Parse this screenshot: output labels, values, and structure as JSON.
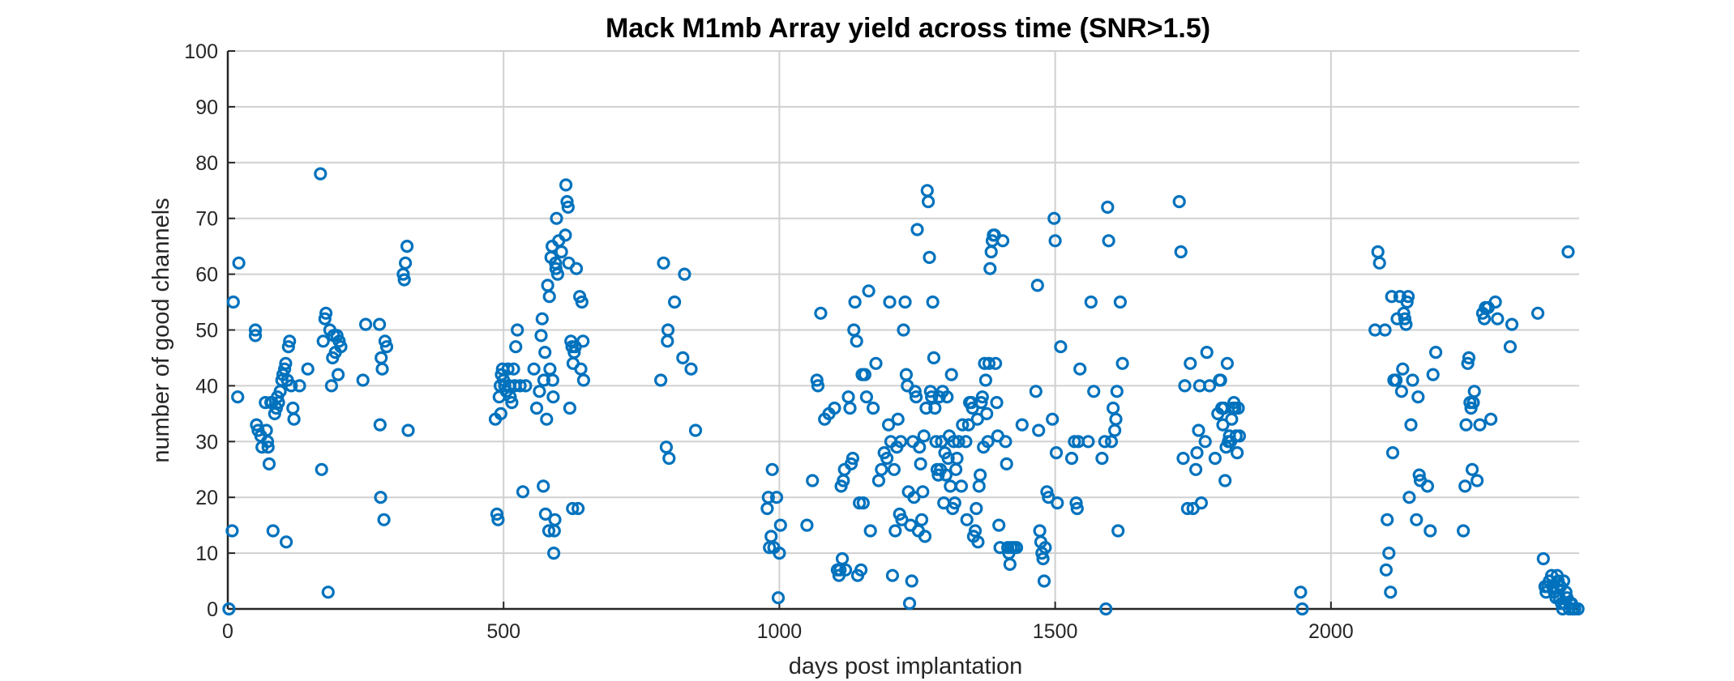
{
  "chart_data": {
    "type": "scatter",
    "title": "Mack M1mb Array yield across time (SNR>1.5)",
    "xlabel": "days post implantation",
    "ylabel": "number of good channels",
    "xlim": [
      0,
      2450
    ],
    "ylim": [
      0,
      100
    ],
    "xticks": [
      0,
      500,
      1000,
      1500,
      2000
    ],
    "yticks": [
      0,
      10,
      20,
      30,
      40,
      50,
      60,
      70,
      80,
      90,
      100
    ],
    "grid": true,
    "marker": "circle",
    "marker_color": "#0072BD",
    "points": [
      [
        2,
        0
      ],
      [
        8,
        14
      ],
      [
        10,
        55
      ],
      [
        18,
        38
      ],
      [
        20,
        62
      ],
      [
        50,
        50
      ],
      [
        50,
        49
      ],
      [
        52,
        33
      ],
      [
        55,
        32
      ],
      [
        60,
        31
      ],
      [
        62,
        29
      ],
      [
        68,
        37
      ],
      [
        70,
        32
      ],
      [
        72,
        30
      ],
      [
        73,
        29
      ],
      [
        75,
        26
      ],
      [
        78,
        37
      ],
      [
        80,
        37
      ],
      [
        82,
        14
      ],
      [
        85,
        35
      ],
      [
        88,
        36
      ],
      [
        90,
        38
      ],
      [
        92,
        37
      ],
      [
        95,
        39
      ],
      [
        98,
        41
      ],
      [
        100,
        42
      ],
      [
        103,
        43
      ],
      [
        105,
        44
      ],
      [
        106,
        12
      ],
      [
        108,
        41
      ],
      [
        110,
        47
      ],
      [
        112,
        48
      ],
      [
        115,
        40
      ],
      [
        118,
        36
      ],
      [
        120,
        34
      ],
      [
        130,
        40
      ],
      [
        145,
        43
      ],
      [
        168,
        78
      ],
      [
        170,
        25
      ],
      [
        173,
        48
      ],
      [
        176,
        52
      ],
      [
        178,
        53
      ],
      [
        182,
        3
      ],
      [
        185,
        50
      ],
      [
        188,
        40
      ],
      [
        190,
        45
      ],
      [
        192,
        49
      ],
      [
        195,
        46
      ],
      [
        198,
        49
      ],
      [
        200,
        42
      ],
      [
        202,
        48
      ],
      [
        205,
        47
      ],
      [
        245,
        41
      ],
      [
        250,
        51
      ],
      [
        275,
        51
      ],
      [
        276,
        33
      ],
      [
        277,
        20
      ],
      [
        278,
        45
      ],
      [
        280,
        43
      ],
      [
        283,
        16
      ],
      [
        285,
        48
      ],
      [
        288,
        47
      ],
      [
        318,
        60
      ],
      [
        320,
        59
      ],
      [
        322,
        62
      ],
      [
        325,
        65
      ],
      [
        327,
        32
      ],
      [
        485,
        34
      ],
      [
        488,
        17
      ],
      [
        490,
        16
      ],
      [
        492,
        38
      ],
      [
        494,
        40
      ],
      [
        495,
        35
      ],
      [
        496,
        42
      ],
      [
        498,
        43
      ],
      [
        500,
        41
      ],
      [
        502,
        40
      ],
      [
        505,
        39
      ],
      [
        508,
        43
      ],
      [
        510,
        40
      ],
      [
        512,
        38
      ],
      [
        515,
        37
      ],
      [
        518,
        43
      ],
      [
        520,
        40
      ],
      [
        522,
        47
      ],
      [
        525,
        50
      ],
      [
        530,
        40
      ],
      [
        535,
        21
      ],
      [
        540,
        40
      ],
      [
        555,
        43
      ],
      [
        560,
        36
      ],
      [
        565,
        39
      ],
      [
        568,
        49
      ],
      [
        570,
        52
      ],
      [
        572,
        22
      ],
      [
        573,
        41
      ],
      [
        575,
        46
      ],
      [
        576,
        17
      ],
      [
        578,
        34
      ],
      [
        580,
        58
      ],
      [
        582,
        14
      ],
      [
        583,
        56
      ],
      [
        584,
        43
      ],
      [
        586,
        63
      ],
      [
        588,
        65
      ],
      [
        589,
        41
      ],
      [
        590,
        38
      ],
      [
        591,
        10
      ],
      [
        592,
        14
      ],
      [
        593,
        16
      ],
      [
        594,
        62
      ],
      [
        595,
        61
      ],
      [
        596,
        70
      ],
      [
        598,
        60
      ],
      [
        600,
        66
      ],
      [
        605,
        64
      ],
      [
        612,
        67
      ],
      [
        613,
        76
      ],
      [
        615,
        73
      ],
      [
        617,
        72
      ],
      [
        618,
        62
      ],
      [
        620,
        36
      ],
      [
        622,
        48
      ],
      [
        624,
        47
      ],
      [
        625,
        18
      ],
      [
        626,
        44
      ],
      [
        628,
        46
      ],
      [
        630,
        47
      ],
      [
        632,
        61
      ],
      [
        635,
        18
      ],
      [
        638,
        56
      ],
      [
        640,
        43
      ],
      [
        642,
        55
      ],
      [
        644,
        48
      ],
      [
        645,
        41
      ],
      [
        785,
        41
      ],
      [
        790,
        62
      ],
      [
        795,
        29
      ],
      [
        797,
        48
      ],
      [
        798,
        50
      ],
      [
        800,
        27
      ],
      [
        810,
        55
      ],
      [
        825,
        45
      ],
      [
        828,
        60
      ],
      [
        840,
        43
      ],
      [
        848,
        32
      ],
      [
        978,
        18
      ],
      [
        980,
        20
      ],
      [
        982,
        11
      ],
      [
        985,
        13
      ],
      [
        987,
        25
      ],
      [
        990,
        11
      ],
      [
        995,
        20
      ],
      [
        998,
        2
      ],
      [
        1000,
        10
      ],
      [
        1002,
        15
      ],
      [
        1050,
        15
      ],
      [
        1060,
        23
      ],
      [
        1068,
        41
      ],
      [
        1070,
        40
      ],
      [
        1075,
        53
      ],
      [
        1082,
        34
      ],
      [
        1090,
        35
      ],
      [
        1100,
        36
      ],
      [
        1105,
        7
      ],
      [
        1108,
        6
      ],
      [
        1110,
        7
      ],
      [
        1112,
        22
      ],
      [
        1114,
        9
      ],
      [
        1116,
        23
      ],
      [
        1118,
        25
      ],
      [
        1120,
        7
      ],
      [
        1125,
        38
      ],
      [
        1128,
        36
      ],
      [
        1130,
        26
      ],
      [
        1133,
        27
      ],
      [
        1135,
        50
      ],
      [
        1137,
        55
      ],
      [
        1140,
        48
      ],
      [
        1142,
        6
      ],
      [
        1145,
        19
      ],
      [
        1148,
        7
      ],
      [
        1150,
        42
      ],
      [
        1152,
        19
      ],
      [
        1155,
        42
      ],
      [
        1158,
        38
      ],
      [
        1162,
        57
      ],
      [
        1165,
        14
      ],
      [
        1170,
        36
      ],
      [
        1175,
        44
      ],
      [
        1180,
        23
      ],
      [
        1185,
        25
      ],
      [
        1190,
        28
      ],
      [
        1195,
        27
      ],
      [
        1198,
        33
      ],
      [
        1200,
        55
      ],
      [
        1202,
        30
      ],
      [
        1205,
        6
      ],
      [
        1208,
        25
      ],
      [
        1210,
        14
      ],
      [
        1213,
        29
      ],
      [
        1215,
        34
      ],
      [
        1218,
        17
      ],
      [
        1220,
        30
      ],
      [
        1222,
        16
      ],
      [
        1225,
        50
      ],
      [
        1228,
        55
      ],
      [
        1230,
        42
      ],
      [
        1232,
        40
      ],
      [
        1234,
        21
      ],
      [
        1236,
        1
      ],
      [
        1238,
        15
      ],
      [
        1240,
        5
      ],
      [
        1242,
        30
      ],
      [
        1244,
        20
      ],
      [
        1246,
        39
      ],
      [
        1248,
        38
      ],
      [
        1250,
        68
      ],
      [
        1252,
        14
      ],
      [
        1254,
        29
      ],
      [
        1256,
        26
      ],
      [
        1258,
        16
      ],
      [
        1260,
        21
      ],
      [
        1262,
        31
      ],
      [
        1264,
        13
      ],
      [
        1266,
        36
      ],
      [
        1268,
        75
      ],
      [
        1270,
        73
      ],
      [
        1272,
        63
      ],
      [
        1274,
        39
      ],
      [
        1276,
        38
      ],
      [
        1278,
        55
      ],
      [
        1280,
        45
      ],
      [
        1282,
        36
      ],
      [
        1284,
        30
      ],
      [
        1286,
        25
      ],
      [
        1288,
        24
      ],
      [
        1290,
        38
      ],
      [
        1292,
        25
      ],
      [
        1294,
        30
      ],
      [
        1296,
        39
      ],
      [
        1298,
        19
      ],
      [
        1300,
        28
      ],
      [
        1302,
        24
      ],
      [
        1304,
        38
      ],
      [
        1306,
        27
      ],
      [
        1308,
        31
      ],
      [
        1310,
        22
      ],
      [
        1312,
        42
      ],
      [
        1314,
        18
      ],
      [
        1316,
        30
      ],
      [
        1318,
        19
      ],
      [
        1320,
        25
      ],
      [
        1322,
        27
      ],
      [
        1325,
        30
      ],
      [
        1330,
        22
      ],
      [
        1332,
        33
      ],
      [
        1338,
        30
      ],
      [
        1340,
        16
      ],
      [
        1343,
        33
      ],
      [
        1345,
        37
      ],
      [
        1348,
        37
      ],
      [
        1350,
        36
      ],
      [
        1352,
        13
      ],
      [
        1355,
        14
      ],
      [
        1357,
        18
      ],
      [
        1359,
        34
      ],
      [
        1360,
        12
      ],
      [
        1362,
        22
      ],
      [
        1364,
        24
      ],
      [
        1366,
        37
      ],
      [
        1368,
        38
      ],
      [
        1370,
        29
      ],
      [
        1372,
        44
      ],
      [
        1374,
        41
      ],
      [
        1376,
        35
      ],
      [
        1378,
        30
      ],
      [
        1380,
        44
      ],
      [
        1382,
        61
      ],
      [
        1384,
        64
      ],
      [
        1386,
        66
      ],
      [
        1388,
        67
      ],
      [
        1390,
        67
      ],
      [
        1392,
        44
      ],
      [
        1394,
        37
      ],
      [
        1396,
        31
      ],
      [
        1398,
        15
      ],
      [
        1400,
        11
      ],
      [
        1405,
        66
      ],
      [
        1410,
        30
      ],
      [
        1412,
        26
      ],
      [
        1414,
        11
      ],
      [
        1416,
        10
      ],
      [
        1418,
        8
      ],
      [
        1420,
        11
      ],
      [
        1425,
        11
      ],
      [
        1430,
        11
      ],
      [
        1440,
        33
      ],
      [
        1465,
        39
      ],
      [
        1468,
        58
      ],
      [
        1470,
        32
      ],
      [
        1472,
        14
      ],
      [
        1474,
        12
      ],
      [
        1476,
        10
      ],
      [
        1478,
        9
      ],
      [
        1480,
        5
      ],
      [
        1482,
        11
      ],
      [
        1485,
        21
      ],
      [
        1488,
        20
      ],
      [
        1495,
        34
      ],
      [
        1498,
        70
      ],
      [
        1500,
        66
      ],
      [
        1502,
        28
      ],
      [
        1504,
        19
      ],
      [
        1510,
        47
      ],
      [
        1530,
        27
      ],
      [
        1535,
        30
      ],
      [
        1538,
        19
      ],
      [
        1540,
        18
      ],
      [
        1542,
        30
      ],
      [
        1545,
        43
      ],
      [
        1560,
        30
      ],
      [
        1565,
        55
      ],
      [
        1570,
        39
      ],
      [
        1585,
        27
      ],
      [
        1590,
        30
      ],
      [
        1592,
        0
      ],
      [
        1595,
        72
      ],
      [
        1597,
        66
      ],
      [
        1602,
        30
      ],
      [
        1605,
        36
      ],
      [
        1608,
        32
      ],
      [
        1610,
        34
      ],
      [
        1612,
        39
      ],
      [
        1614,
        14
      ],
      [
        1618,
        55
      ],
      [
        1622,
        44
      ],
      [
        1725,
        73
      ],
      [
        1728,
        64
      ],
      [
        1732,
        27
      ],
      [
        1735,
        40
      ],
      [
        1740,
        18
      ],
      [
        1745,
        44
      ],
      [
        1750,
        18
      ],
      [
        1755,
        25
      ],
      [
        1757,
        28
      ],
      [
        1760,
        32
      ],
      [
        1762,
        40
      ],
      [
        1765,
        19
      ],
      [
        1772,
        30
      ],
      [
        1775,
        46
      ],
      [
        1780,
        40
      ],
      [
        1790,
        27
      ],
      [
        1795,
        35
      ],
      [
        1798,
        41
      ],
      [
        1800,
        41
      ],
      [
        1802,
        36
      ],
      [
        1804,
        33
      ],
      [
        1806,
        36
      ],
      [
        1808,
        23
      ],
      [
        1810,
        29
      ],
      [
        1812,
        44
      ],
      [
        1814,
        30
      ],
      [
        1816,
        31
      ],
      [
        1818,
        30
      ],
      [
        1820,
        34
      ],
      [
        1822,
        36
      ],
      [
        1824,
        37
      ],
      [
        1826,
        36
      ],
      [
        1828,
        31
      ],
      [
        1830,
        28
      ],
      [
        1832,
        36
      ],
      [
        1834,
        31
      ],
      [
        1945,
        3
      ],
      [
        1948,
        0
      ],
      [
        2080,
        50
      ],
      [
        2085,
        64
      ],
      [
        2088,
        62
      ],
      [
        2098,
        50
      ],
      [
        2100,
        7
      ],
      [
        2102,
        16
      ],
      [
        2105,
        10
      ],
      [
        2108,
        3
      ],
      [
        2110,
        56
      ],
      [
        2112,
        28
      ],
      [
        2114,
        41
      ],
      [
        2116,
        41
      ],
      [
        2118,
        41
      ],
      [
        2120,
        52
      ],
      [
        2125,
        56
      ],
      [
        2128,
        39
      ],
      [
        2130,
        43
      ],
      [
        2132,
        53
      ],
      [
        2134,
        52
      ],
      [
        2136,
        51
      ],
      [
        2138,
        55
      ],
      [
        2140,
        56
      ],
      [
        2142,
        20
      ],
      [
        2145,
        33
      ],
      [
        2148,
        41
      ],
      [
        2155,
        16
      ],
      [
        2158,
        38
      ],
      [
        2160,
        24
      ],
      [
        2162,
        23
      ],
      [
        2175,
        22
      ],
      [
        2180,
        14
      ],
      [
        2185,
        42
      ],
      [
        2190,
        46
      ],
      [
        2240,
        14
      ],
      [
        2243,
        22
      ],
      [
        2245,
        33
      ],
      [
        2248,
        44
      ],
      [
        2250,
        45
      ],
      [
        2252,
        37
      ],
      [
        2254,
        36
      ],
      [
        2256,
        25
      ],
      [
        2258,
        37
      ],
      [
        2260,
        39
      ],
      [
        2265,
        23
      ],
      [
        2270,
        33
      ],
      [
        2275,
        53
      ],
      [
        2278,
        52
      ],
      [
        2280,
        54
      ],
      [
        2285,
        54
      ],
      [
        2290,
        34
      ],
      [
        2298,
        55
      ],
      [
        2302,
        52
      ],
      [
        2325,
        47
      ],
      [
        2328,
        51
      ],
      [
        2375,
        53
      ],
      [
        2385,
        9
      ],
      [
        2388,
        4
      ],
      [
        2390,
        3
      ],
      [
        2393,
        4
      ],
      [
        2396,
        5
      ],
      [
        2400,
        6
      ],
      [
        2402,
        4
      ],
      [
        2405,
        3
      ],
      [
        2408,
        2
      ],
      [
        2410,
        6
      ],
      [
        2412,
        5
      ],
      [
        2414,
        2
      ],
      [
        2416,
        4
      ],
      [
        2418,
        1
      ],
      [
        2420,
        0
      ],
      [
        2422,
        5
      ],
      [
        2424,
        1
      ],
      [
        2426,
        3
      ],
      [
        2428,
        2
      ],
      [
        2430,
        64
      ],
      [
        2432,
        0
      ],
      [
        2434,
        1
      ],
      [
        2436,
        1
      ],
      [
        2438,
        0
      ],
      [
        2442,
        0
      ],
      [
        2448,
        0
      ]
    ]
  }
}
